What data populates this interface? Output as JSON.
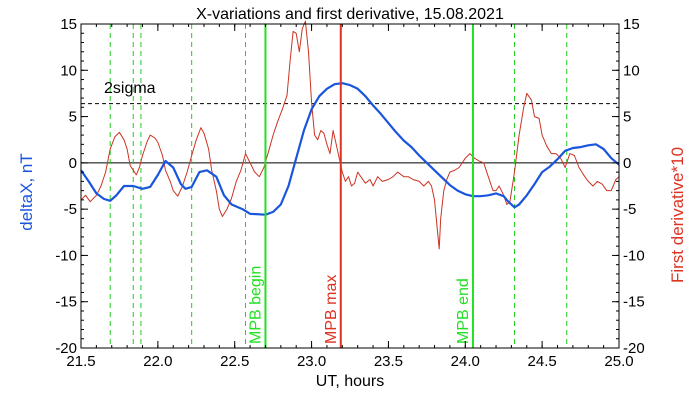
{
  "chart_data": {
    "type": "line",
    "title": "X-variations and first derivative, 15.08.2021",
    "xlabel": "UT, hours",
    "ylabel_left": "deltaX, nT",
    "ylabel_right": "First derivative*10",
    "xlim": [
      21.5,
      25.0
    ],
    "ylim": [
      -20,
      15
    ],
    "x_ticks": [
      "21.5",
      "22.0",
      "22.5",
      "23.0",
      "23.5",
      "24.0",
      "24.5",
      "25.0"
    ],
    "y_ticks": [
      "-20",
      "-15",
      "-10",
      "-5",
      "0",
      "5",
      "10",
      "15"
    ],
    "threshold": {
      "label": "2sigma",
      "y": 6.4,
      "style": "dashed",
      "color": "#000000"
    },
    "zero_line": {
      "y": 0,
      "color": "#000000"
    },
    "markers": [
      {
        "label": "MPB begin",
        "x": 22.7,
        "color": "#22e022"
      },
      {
        "label": "MPB max",
        "x": 23.19,
        "color": "#dd3322"
      },
      {
        "label": "MPB end",
        "x": 24.05,
        "color": "#22e022"
      }
    ],
    "dashed_verticals": {
      "color": "#22cc22",
      "x": [
        21.69,
        21.84,
        21.89,
        22.22,
        22.57,
        24.32,
        24.66
      ]
    },
    "series": [
      {
        "color": "#1a55dd",
        "axis": "left",
        "points": [
          [
            21.5,
            -0.8
          ],
          [
            21.55,
            -2.0
          ],
          [
            21.6,
            -3.3
          ],
          [
            21.65,
            -3.9
          ],
          [
            21.69,
            -4.1
          ],
          [
            21.73,
            -3.5
          ],
          [
            21.78,
            -2.5
          ],
          [
            21.84,
            -2.5
          ],
          [
            21.9,
            -2.8
          ],
          [
            21.95,
            -2.6
          ],
          [
            22.0,
            -1.3
          ],
          [
            22.05,
            0.2
          ],
          [
            22.1,
            -0.5
          ],
          [
            22.15,
            -2.3
          ],
          [
            22.18,
            -2.8
          ],
          [
            22.22,
            -2.6
          ],
          [
            22.27,
            -1.0
          ],
          [
            22.32,
            -0.8
          ],
          [
            22.38,
            -1.5
          ],
          [
            22.43,
            -3.5
          ],
          [
            22.48,
            -4.5
          ],
          [
            22.55,
            -5.0
          ],
          [
            22.6,
            -5.5
          ],
          [
            22.7,
            -5.6
          ],
          [
            22.75,
            -5.3
          ],
          [
            22.8,
            -4.5
          ],
          [
            22.85,
            -2.5
          ],
          [
            22.9,
            0.5
          ],
          [
            22.95,
            3.5
          ],
          [
            23.0,
            5.8
          ],
          [
            23.05,
            7.2
          ],
          [
            23.1,
            8.0
          ],
          [
            23.15,
            8.5
          ],
          [
            23.2,
            8.6
          ],
          [
            23.25,
            8.4
          ],
          [
            23.3,
            8.0
          ],
          [
            23.35,
            7.2
          ],
          [
            23.4,
            6.2
          ],
          [
            23.45,
            5.3
          ],
          [
            23.5,
            4.3
          ],
          [
            23.55,
            3.3
          ],
          [
            23.6,
            2.4
          ],
          [
            23.65,
            1.7
          ],
          [
            23.7,
            0.8
          ],
          [
            23.75,
            0.0
          ],
          [
            23.8,
            -0.8
          ],
          [
            23.85,
            -1.6
          ],
          [
            23.9,
            -2.4
          ],
          [
            23.95,
            -3.0
          ],
          [
            24.0,
            -3.4
          ],
          [
            24.05,
            -3.6
          ],
          [
            24.1,
            -3.6
          ],
          [
            24.15,
            -3.5
          ],
          [
            24.2,
            -3.3
          ],
          [
            24.25,
            -3.6
          ],
          [
            24.28,
            -4.2
          ],
          [
            24.32,
            -4.8
          ],
          [
            24.35,
            -4.5
          ],
          [
            24.4,
            -3.5
          ],
          [
            24.45,
            -2.3
          ],
          [
            24.5,
            -1.0
          ],
          [
            24.55,
            -0.4
          ],
          [
            24.6,
            0.4
          ],
          [
            24.65,
            1.3
          ],
          [
            24.7,
            1.6
          ],
          [
            24.75,
            1.7
          ],
          [
            24.8,
            1.9
          ],
          [
            24.85,
            2.0
          ],
          [
            24.9,
            1.5
          ],
          [
            24.95,
            0.5
          ],
          [
            25.0,
            -0.2
          ]
        ]
      },
      {
        "color": "#cc3322",
        "axis": "right",
        "points": [
          [
            21.5,
            -4.0
          ],
          [
            21.53,
            -3.5
          ],
          [
            21.56,
            -4.2
          ],
          [
            21.6,
            -3.5
          ],
          [
            21.63,
            -2.5
          ],
          [
            21.66,
            -1.0
          ],
          [
            21.69,
            1.5
          ],
          [
            21.72,
            2.8
          ],
          [
            21.75,
            3.3
          ],
          [
            21.78,
            2.5
          ],
          [
            21.8,
            1.5
          ],
          [
            21.82,
            -0.3
          ],
          [
            21.84,
            -0.8
          ],
          [
            21.86,
            -1.3
          ],
          [
            21.88,
            -0.5
          ],
          [
            21.9,
            0.8
          ],
          [
            21.93,
            2.3
          ],
          [
            21.95,
            3.0
          ],
          [
            21.98,
            2.7
          ],
          [
            22.0,
            2.2
          ],
          [
            22.03,
            0.8
          ],
          [
            22.05,
            -0.8
          ],
          [
            22.08,
            -2.0
          ],
          [
            22.1,
            -3.0
          ],
          [
            22.13,
            -3.6
          ],
          [
            22.16,
            -2.5
          ],
          [
            22.19,
            -1.0
          ],
          [
            22.22,
            0.8
          ],
          [
            22.25,
            2.5
          ],
          [
            22.28,
            3.8
          ],
          [
            22.3,
            3.2
          ],
          [
            22.33,
            1.5
          ],
          [
            22.35,
            -0.8
          ],
          [
            22.38,
            -3.0
          ],
          [
            22.4,
            -5.0
          ],
          [
            22.42,
            -5.8
          ],
          [
            22.45,
            -5.0
          ],
          [
            22.48,
            -3.8
          ],
          [
            22.51,
            -2.0
          ],
          [
            22.54,
            -0.8
          ],
          [
            22.57,
            1.0
          ],
          [
            22.6,
            0.0
          ],
          [
            22.63,
            -1.0
          ],
          [
            22.66,
            -1.5
          ],
          [
            22.69,
            -0.5
          ],
          [
            22.72,
            1.2
          ],
          [
            22.75,
            3.0
          ],
          [
            22.78,
            4.5
          ],
          [
            22.81,
            5.8
          ],
          [
            22.84,
            7.3
          ],
          [
            22.86,
            11.0
          ],
          [
            22.88,
            14.2
          ],
          [
            22.9,
            14.0
          ],
          [
            22.92,
            12.0
          ],
          [
            22.94,
            14.5
          ],
          [
            22.96,
            15.3
          ],
          [
            22.98,
            12.0
          ],
          [
            23.0,
            6.5
          ],
          [
            23.02,
            3.0
          ],
          [
            23.04,
            2.5
          ],
          [
            23.06,
            3.5
          ],
          [
            23.08,
            3.2
          ],
          [
            23.1,
            2.0
          ],
          [
            23.12,
            1.0
          ],
          [
            23.14,
            3.5
          ],
          [
            23.16,
            2.0
          ],
          [
            23.18,
            0.5
          ],
          [
            23.2,
            -1.0
          ],
          [
            23.22,
            -2.0
          ],
          [
            23.24,
            -1.5
          ],
          [
            23.26,
            -2.5
          ],
          [
            23.28,
            -2.2
          ],
          [
            23.3,
            -1.0
          ],
          [
            23.32,
            -1.5
          ],
          [
            23.35,
            -2.2
          ],
          [
            23.38,
            -1.8
          ],
          [
            23.4,
            -2.5
          ],
          [
            23.43,
            -1.5
          ],
          [
            23.46,
            -2.0
          ],
          [
            23.5,
            -1.8
          ],
          [
            23.53,
            -1.5
          ],
          [
            23.56,
            -1.0
          ],
          [
            23.6,
            -1.5
          ],
          [
            23.63,
            -1.5
          ],
          [
            23.66,
            -1.8
          ],
          [
            23.7,
            -2.0
          ],
          [
            23.73,
            -2.5
          ],
          [
            23.76,
            -2.0
          ],
          [
            23.78,
            -2.5
          ],
          [
            23.8,
            -4.0
          ],
          [
            23.82,
            -7.5
          ],
          [
            23.83,
            -9.3
          ],
          [
            23.84,
            -6.0
          ],
          [
            23.86,
            -3.0
          ],
          [
            23.88,
            -1.8
          ],
          [
            23.9,
            -1.0
          ],
          [
            23.93,
            -0.8
          ],
          [
            23.96,
            -0.5
          ],
          [
            24.0,
            0.5
          ],
          [
            24.03,
            1.0
          ],
          [
            24.06,
            0.5
          ],
          [
            24.09,
            0.2
          ],
          [
            24.12,
            0.0
          ],
          [
            24.15,
            -1.5
          ],
          [
            24.18,
            -3.0
          ],
          [
            24.2,
            -3.0
          ],
          [
            24.22,
            -2.5
          ],
          [
            24.25,
            -3.5
          ],
          [
            24.27,
            -4.5
          ],
          [
            24.29,
            -4.2
          ],
          [
            24.32,
            -1.0
          ],
          [
            24.35,
            3.0
          ],
          [
            24.38,
            6.0
          ],
          [
            24.4,
            7.5
          ],
          [
            24.43,
            6.8
          ],
          [
            24.45,
            5.0
          ],
          [
            24.48,
            4.8
          ],
          [
            24.5,
            3.0
          ],
          [
            24.53,
            1.8
          ],
          [
            24.56,
            1.0
          ],
          [
            24.59,
            1.0
          ],
          [
            24.62,
            0.5
          ],
          [
            24.65,
            -0.5
          ],
          [
            24.68,
            1.0
          ],
          [
            24.71,
            0.8
          ],
          [
            24.74,
            -0.5
          ],
          [
            24.77,
            -1.3
          ],
          [
            24.8,
            -2.0
          ],
          [
            24.83,
            -2.5
          ],
          [
            24.86,
            -2.0
          ],
          [
            24.89,
            -2.3
          ],
          [
            24.92,
            -3.0
          ],
          [
            24.95,
            -3.0
          ],
          [
            24.98,
            -1.8
          ],
          [
            25.0,
            -1.5
          ]
        ]
      }
    ]
  }
}
